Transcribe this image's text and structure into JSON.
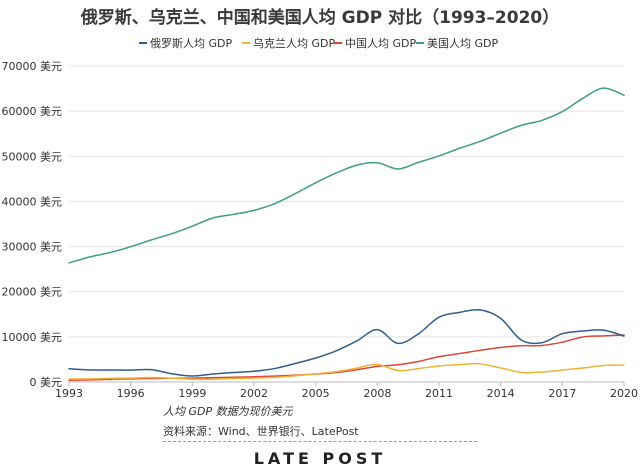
{
  "chart_data": {
    "type": "line",
    "title": "俄罗斯、乌克兰、中国和美国人均 GDP 对比（1993–2020）",
    "x": [
      1993,
      1994,
      1995,
      1996,
      1997,
      1998,
      1999,
      2000,
      2001,
      2002,
      2003,
      2004,
      2005,
      2006,
      2007,
      2008,
      2009,
      2010,
      2011,
      2012,
      2013,
      2014,
      2015,
      2016,
      2017,
      2018,
      2019,
      2020
    ],
    "x_ticks": [
      "1993",
      "1996",
      "1999",
      "2002",
      "2005",
      "2008",
      "2011",
      "2014",
      "2017",
      "2020"
    ],
    "y_ticks": [
      "0 美元",
      "10000 美元",
      "20000 美元",
      "30000 美元",
      "40000 美元",
      "50000 美元",
      "60000 美元",
      "70000 美元"
    ],
    "ylim": [
      0,
      70000
    ],
    "grid": true,
    "legend_position": "top",
    "series": [
      {
        "name": "俄罗斯人均 GDP",
        "color": "#2f5f8f",
        "values": [
          2930,
          2660,
          2670,
          2640,
          2740,
          1830,
          1330,
          1770,
          2100,
          2380,
          2980,
          4100,
          5320,
          6920,
          9100,
          11600,
          8560,
          10670,
          14350,
          15420,
          15970,
          14100,
          9310,
          8700,
          10700,
          11290,
          11500,
          10170
        ]
      },
      {
        "name": "乌克兰人均 GDP",
        "color": "#f2b233",
        "values": [
          640,
          700,
          820,
          870,
          990,
          840,
          640,
          640,
          780,
          880,
          1050,
          1370,
          1830,
          2300,
          3070,
          3890,
          2550,
          2970,
          3570,
          3860,
          4030,
          3100,
          2120,
          2190,
          2640,
          3100,
          3660,
          3730
        ]
      },
      {
        "name": "中国人均 GDP",
        "color": "#d9473a",
        "values": [
          380,
          470,
          610,
          700,
          780,
          830,
          870,
          960,
          1050,
          1150,
          1290,
          1510,
          1750,
          2100,
          2700,
          3470,
          3830,
          4550,
          5620,
          6300,
          7020,
          7640,
          8030,
          8080,
          8820,
          9980,
          10220,
          10410
        ]
      },
      {
        "name": "美国人均 GDP",
        "color": "#3f9d85",
        "values": [
          26390,
          27690,
          28690,
          29970,
          31460,
          32850,
          34520,
          36330,
          37130,
          38020,
          39500,
          41720,
          44120,
          46300,
          48050,
          48570,
          47190,
          48650,
          50070,
          51780,
          53290,
          55120,
          56850,
          57950,
          59900,
          62840,
          65100,
          63530
        ]
      }
    ]
  },
  "notes": {
    "unit_note": "人均 GDP 数据为现价美元",
    "source": "资料来源：Wind、世界银行、LatePost"
  },
  "logo": "LATE POST"
}
